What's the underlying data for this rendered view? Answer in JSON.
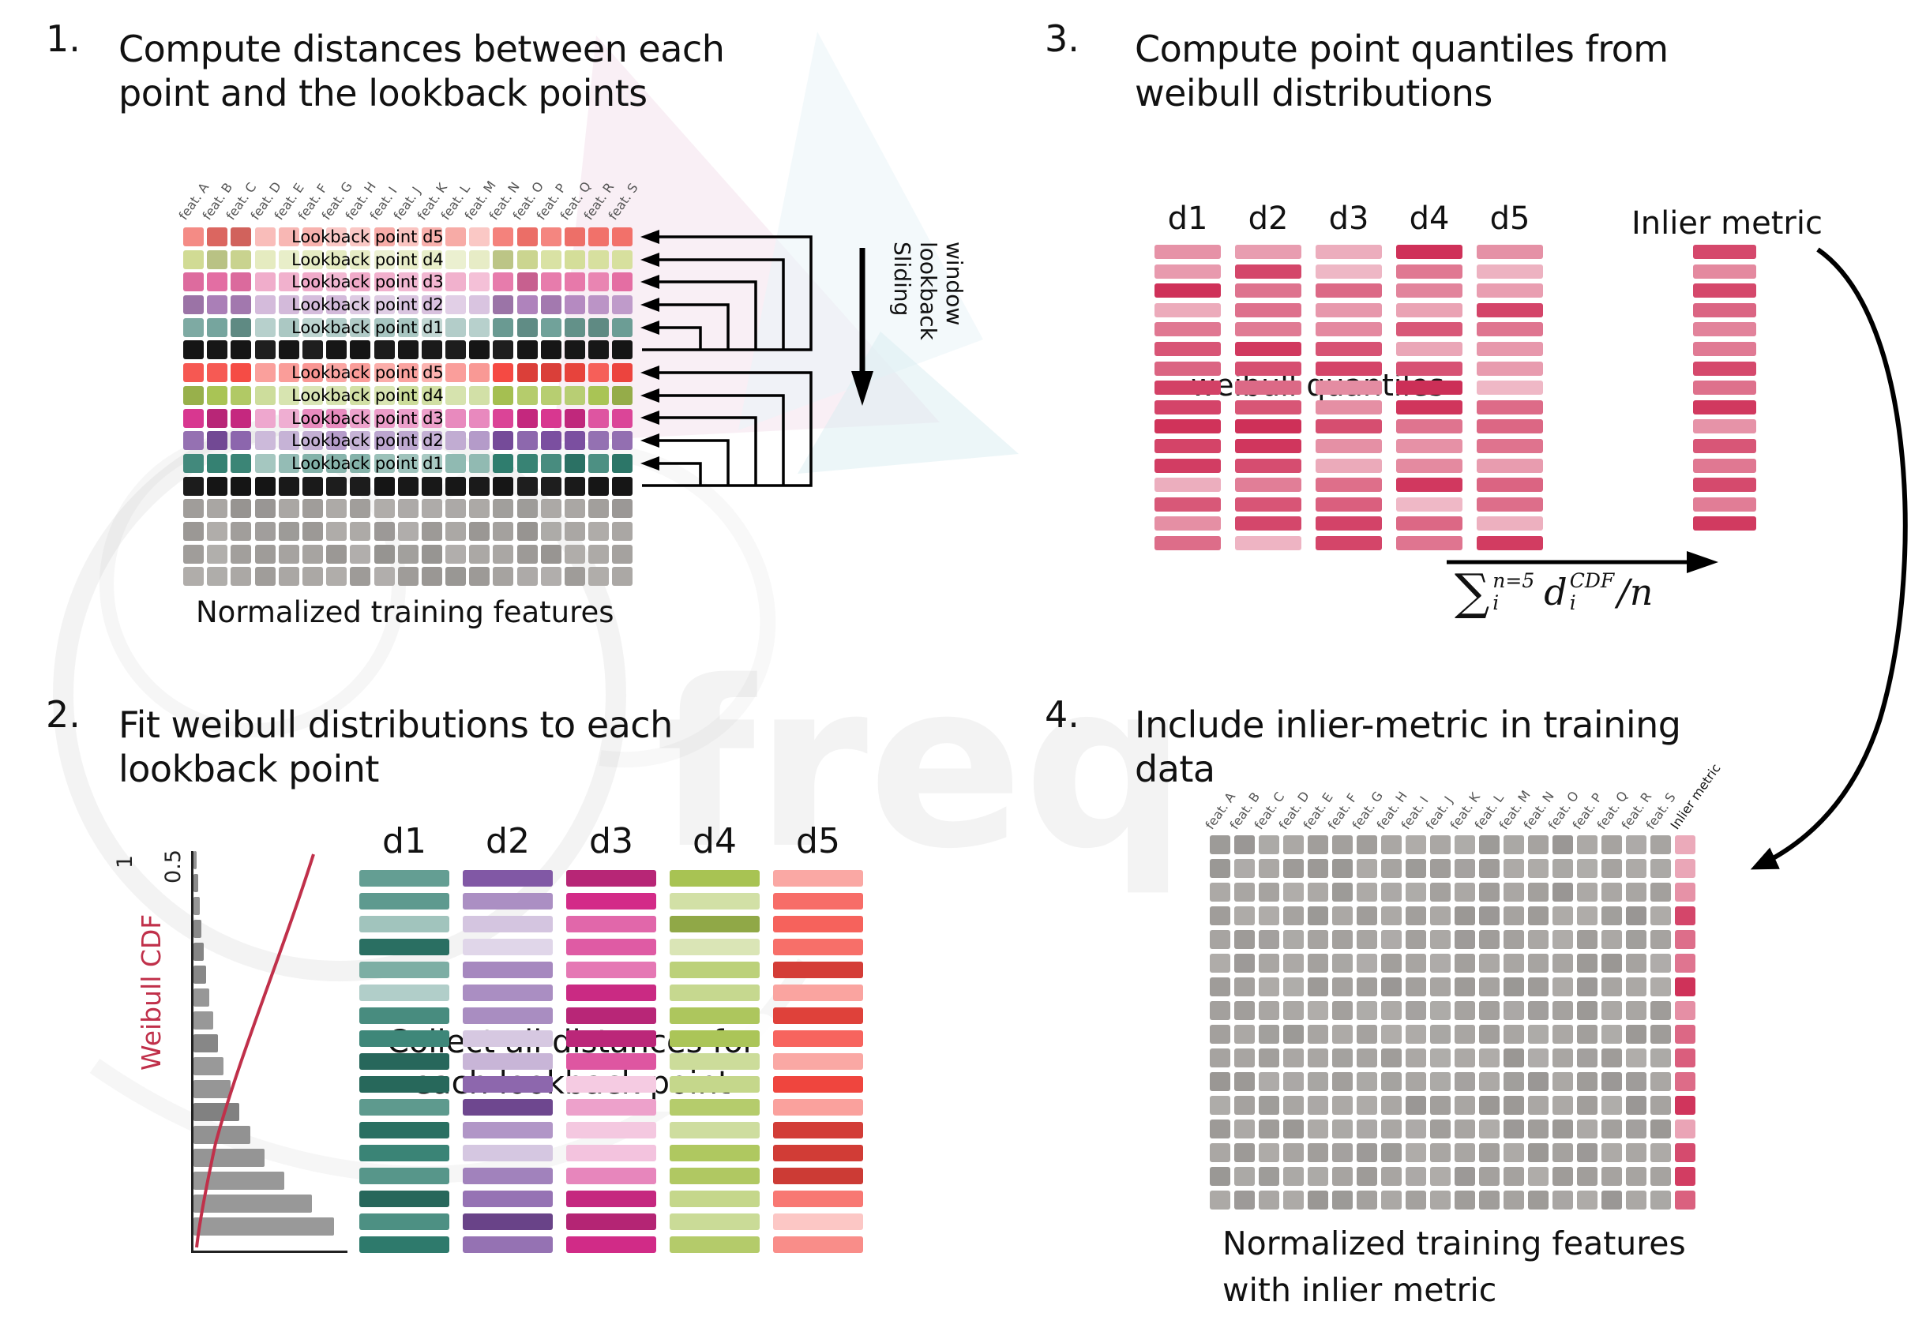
{
  "watermark": {
    "text": "freq"
  },
  "colors": {
    "d1_light": "#6d9f97",
    "d1_dark": "#2f7d6e",
    "d2_light": "#b083bd",
    "d2_dark": "#7b4fa0",
    "d3_light": "#e56fa4",
    "d3_dark": "#d62c8a",
    "d4_light": "#d3dd96",
    "d4_dark": "#a8c353",
    "d5_light": "#f2716a",
    "d5_dark": "#f54740",
    "black": "#161616",
    "gray": "#a8a5a2",
    "quantile_red": "#cf3058",
    "cdf_curve": "#c0304a",
    "arrow_black": "#000000"
  },
  "panel1": {
    "number": "1.",
    "title_line1": "Compute distances between each",
    "title_line2": "point and the lookback points",
    "features": [
      "feat. A",
      "feat. B",
      "feat. C",
      "feat. D",
      "feat. E",
      "feat. F",
      "feat. G",
      "feat. H",
      "feat. I",
      "feat. J",
      "feat. K",
      "feat. L",
      "feat. M",
      "feat. N",
      "feat. O",
      "feat. P",
      "feat. Q",
      "feat. R",
      "feat. S"
    ],
    "rows": [
      {
        "type": "lookback",
        "label": "Lookback point d5",
        "color": "d5_light"
      },
      {
        "type": "lookback",
        "label": "Lookback point d4",
        "color": "d4_light"
      },
      {
        "type": "lookback",
        "label": "Lookback point d3",
        "color": "d3_light"
      },
      {
        "type": "lookback",
        "label": "Lookback point d2",
        "color": "d2_light"
      },
      {
        "type": "lookback",
        "label": "Lookback point d1",
        "color": "d1_light"
      },
      {
        "type": "current",
        "label": "",
        "color": "black"
      },
      {
        "type": "lookback",
        "label": "Lookback point d5",
        "color": "d5_dark"
      },
      {
        "type": "lookback",
        "label": "Lookback point d4",
        "color": "d4_dark"
      },
      {
        "type": "lookback",
        "label": "Lookback point d3",
        "color": "d3_dark"
      },
      {
        "type": "lookback",
        "label": "Lookback point d2",
        "color": "d2_dark"
      },
      {
        "type": "lookback",
        "label": "Lookback point d1",
        "color": "d1_dark"
      },
      {
        "type": "current",
        "label": "",
        "color": "black"
      },
      {
        "type": "plain",
        "label": "",
        "color": "gray"
      },
      {
        "type": "plain",
        "label": "",
        "color": "gray"
      },
      {
        "type": "plain",
        "label": "",
        "color": "gray"
      },
      {
        "type": "plain",
        "label": "",
        "color": "gray"
      }
    ],
    "sliding_lines": [
      "Sliding",
      "lookback",
      "window"
    ],
    "caption": "Normalized training features"
  },
  "panel2": {
    "number": "2.",
    "title_line1": "Fit weibull distributions to each",
    "title_line2": "lookback point",
    "cdf_label": "Weibull CDF",
    "tick_high": "1",
    "tick_mid": "0.5",
    "columns": [
      {
        "label": "d1",
        "color": "d1_dark"
      },
      {
        "label": "d2",
        "color": "d2_dark"
      },
      {
        "label": "d3",
        "color": "d3_dark"
      },
      {
        "label": "d4",
        "color": "d4_dark"
      },
      {
        "label": "d5",
        "color": "d5_dark"
      }
    ],
    "overlay_line1": "Collect all distances for",
    "overlay_line2": "each lookback point"
  },
  "panel3": {
    "number": "3.",
    "title_line1": "Compute point quantiles from",
    "title_line2": "weibull distributions",
    "columns": [
      "d1",
      "d2",
      "d3",
      "d4",
      "d5"
    ],
    "overlay": "weibull quantiles",
    "inlier_label": "Inlier metric",
    "formula": {
      "sum_symbol": "∑",
      "sum_sup": "n=5",
      "sum_sub": "i",
      "term_base": "d",
      "term_sup": "CDF",
      "term_sub": "i",
      "tail": "/n"
    }
  },
  "panel4": {
    "number": "4.",
    "title_line1": "Include inlier-metric in training",
    "title_line2": "data",
    "features": [
      "feat. A",
      "feat. B",
      "feat. C",
      "feat. D",
      "feat. E",
      "feat. F",
      "feat. G",
      "feat. H",
      "feat. I",
      "feat. J",
      "feat. K",
      "feat. L",
      "feat. M",
      "feat. N",
      "feat. O",
      "feat. P",
      "feat. Q",
      "feat. R",
      "feat. S",
      "Inlier metric"
    ],
    "caption_line1": "Normalized training features",
    "caption_line2": "with inlier metric"
  }
}
